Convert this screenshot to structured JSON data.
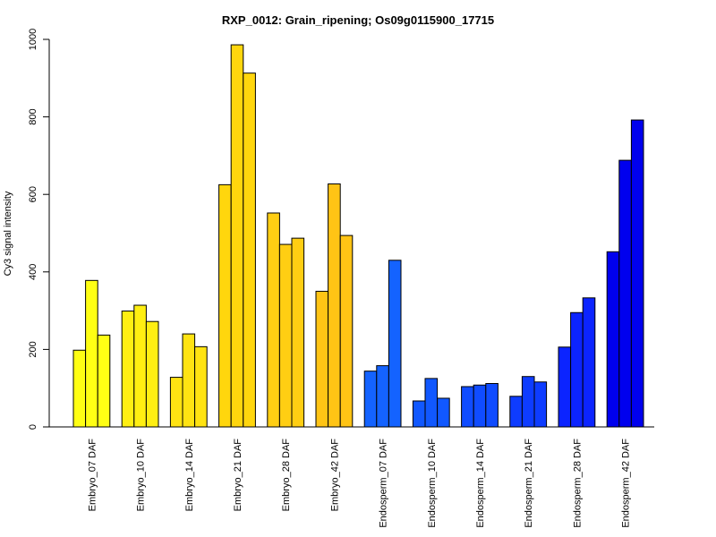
{
  "chart_data": {
    "type": "bar",
    "title": "RXP_0012: Grain_ripening; Os09g0115900_17715",
    "xlabel": "",
    "ylabel": "Cy3 signal intensity",
    "ylim": [
      0,
      1000
    ],
    "yticks": [
      0,
      200,
      400,
      600,
      800,
      1000
    ],
    "grid": false,
    "legend": "none",
    "categories": [
      "Embryo_07 DAF",
      "Embryo_10 DAF",
      "Embryo_14 DAF",
      "Embryo_21 DAF",
      "Embryo_28 DAF",
      "Embryo_42 DAF",
      "Endosperm_07 DAF",
      "Endosperm_10 DAF",
      "Endosperm_14 DAF",
      "Endosperm_21 DAF",
      "Endosperm_28 DAF",
      "Endosperm_42 DAF"
    ],
    "colors": [
      "#ffff14",
      "#ffef12",
      "#ffe312",
      "#ffd60d",
      "#ffce13",
      "#ffc415",
      "#1463ff",
      "#1158ff",
      "#104cff",
      "#0e3cff",
      "#0c24ff",
      "#0000ee"
    ],
    "replicates": [
      [
        198,
        378,
        237
      ],
      [
        299,
        314,
        272
      ],
      [
        128,
        240,
        207
      ],
      [
        625,
        986,
        913
      ],
      [
        552,
        471,
        487
      ],
      [
        350,
        627,
        494
      ],
      [
        144,
        158,
        430
      ],
      [
        67,
        125,
        74
      ],
      [
        104,
        108,
        112
      ],
      [
        79,
        130,
        116
      ],
      [
        206,
        295,
        333
      ],
      [
        452,
        688,
        792
      ]
    ]
  }
}
